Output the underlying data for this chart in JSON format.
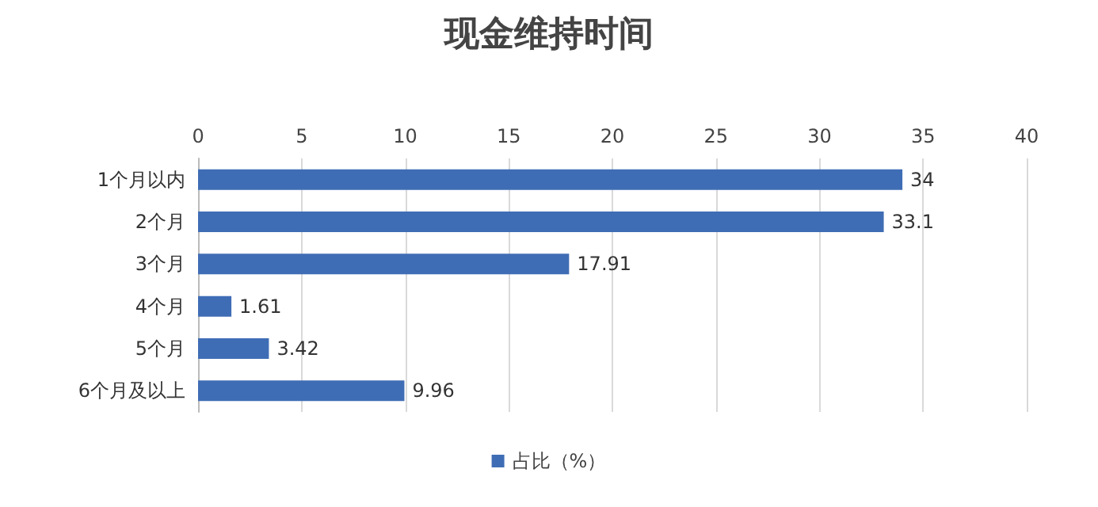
{
  "chart_data": {
    "type": "bar",
    "orientation": "horizontal",
    "title": "现金维持时间",
    "categories": [
      "1个月以内",
      "2个月",
      "3个月",
      "4个月",
      "5个月",
      "6个月及以上"
    ],
    "series": [
      {
        "name": "占比（%）",
        "color": "#3f6db5",
        "values": [
          34,
          33.1,
          17.91,
          1.61,
          3.42,
          9.96
        ]
      }
    ],
    "xlim": [
      0,
      40
    ],
    "xticks": [
      0,
      5,
      10,
      15,
      20,
      25,
      30,
      35,
      40
    ],
    "grid": "x",
    "legend": "bottom",
    "data_labels": true
  }
}
